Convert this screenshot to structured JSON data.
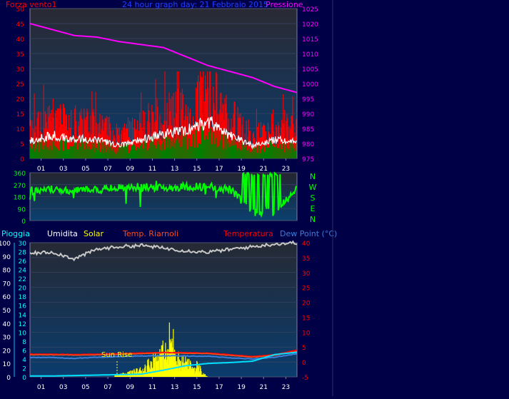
{
  "colors": {
    "page_bg": "#000046",
    "wind": "#ff0000",
    "gust_avg": "#ffffff",
    "wind_green": "#008000",
    "pressure": "#ff00ff",
    "direction": "#00ff00",
    "rain_axis": "#00ffff",
    "humidity_axis": "#ffffff",
    "temperature_axis": "#ff0000",
    "dewpoint": "#3c7ed8",
    "rain": "#00e0ff",
    "solar": "#ffff00",
    "temp_riarnoli": "#ff4a1a",
    "humidity": "#c8c8c8"
  },
  "top_chart": {
    "label_left": "Forza vento1",
    "title": "24 hour graph day: 21 Febbraio 2015",
    "label_right": "Pressione",
    "left_ticks": [
      "0",
      "5",
      "10",
      "15",
      "20",
      "25",
      "30",
      "35",
      "40",
      "45",
      "50"
    ],
    "right_ticks": [
      "975",
      "980",
      "985",
      "990",
      "995",
      "1000",
      "1005",
      "1010",
      "1015",
      "1020",
      "1025"
    ]
  },
  "dir_chart": {
    "left_ticks": [
      "0",
      "90",
      "180",
      "270",
      "360"
    ],
    "compass": [
      "N",
      "W",
      "S",
      "E",
      "N"
    ]
  },
  "bottom_chart": {
    "labels": {
      "rain": "Pioggia",
      "humidity": "Umidita",
      "solar": "Solar",
      "temp_riarnoli": "Temp. Riarnoli",
      "temperature": "Temperatura",
      "dewpoint": "Dew Point (°C)"
    },
    "annotation": "Sun Rise",
    "humidity_ticks": [
      "0",
      "10",
      "20",
      "30",
      "40",
      "50",
      "60",
      "70",
      "80",
      "90",
      "100"
    ],
    "rain_ticks": [
      "0",
      "2",
      "4",
      "6",
      "8",
      "10",
      "12",
      "14",
      "16",
      "18",
      "20",
      "22",
      "24",
      "26",
      "28",
      "30"
    ],
    "temp_ticks": [
      "-5",
      "0",
      "5",
      "10",
      "15",
      "20",
      "25",
      "30",
      "35",
      "40"
    ]
  },
  "x_ticks": [
    "01",
    "03",
    "05",
    "07",
    "09",
    "11",
    "13",
    "15",
    "17",
    "19",
    "21",
    "23"
  ],
  "chart_data": [
    {
      "type": "line",
      "xlabel": "",
      "ylabel": "Forza vento1",
      "x_hours": [
        0,
        2,
        4,
        6,
        8,
        10,
        12,
        14,
        16,
        18,
        20,
        22,
        24
      ],
      "ylim": [
        0,
        50
      ],
      "y2lim": [
        975,
        1025
      ],
      "series": [
        {
          "name": "Forza vento1",
          "values": [
            12,
            16,
            14,
            13,
            9,
            13,
            17,
            19,
            26,
            16,
            9,
            13,
            12
          ]
        },
        {
          "name": "Pressione",
          "values": [
            1020,
            1018,
            1016,
            1015.5,
            1014,
            1013,
            1012,
            1009,
            1006,
            1004,
            1002,
            999,
            997
          ]
        }
      ]
    },
    {
      "type": "line",
      "ylim": [
        0,
        360
      ],
      "x_hours": [
        0,
        2,
        4,
        6,
        8,
        10,
        12,
        14,
        16,
        18,
        20,
        22,
        24
      ],
      "series": [
        {
          "values": [
            225,
            235,
            225,
            235,
            245,
            255,
            245,
            255,
            255,
            235,
            60,
            60,
            250
          ]
        }
      ]
    },
    {
      "type": "line",
      "humidity_lim": [
        0,
        100
      ],
      "rain_lim": [
        0,
        30
      ],
      "temp_lim": [
        -5,
        40
      ],
      "x_hours": [
        0,
        2,
        4,
        6,
        8,
        10,
        12,
        14,
        16,
        18,
        20,
        22,
        24
      ],
      "series": [
        {
          "name": "Umidita",
          "values": [
            92,
            93,
            88,
            95,
            97,
            98,
            96,
            94,
            93,
            95,
            97,
            99,
            100
          ]
        },
        {
          "name": "Temperatura",
          "values": [
            2.6,
            2.6,
            2.5,
            2.6,
            2.8,
            3.0,
            3.2,
            3.1,
            3.0,
            2.4,
            1.8,
            2.4,
            4.0
          ]
        },
        {
          "name": "Temp. Riarnoli",
          "values": [
            2.4,
            2.4,
            2.3,
            2.4,
            2.6,
            2.8,
            3.0,
            2.9,
            2.8,
            2.2,
            1.6,
            2.2,
            3.6
          ]
        },
        {
          "name": "Dew Point (°C)",
          "values": [
            1.5,
            1.5,
            1.2,
            1.6,
            1.8,
            2.0,
            2.1,
            2.0,
            1.9,
            1.4,
            1.0,
            1.6,
            2.8
          ]
        },
        {
          "name": "Pioggia",
          "values": [
            0.2,
            0.2,
            0.3,
            0.4,
            0.5,
            0.6,
            1.5,
            2.5,
            3.0,
            3.2,
            3.5,
            5.0,
            5.5
          ]
        },
        {
          "name": "Solar",
          "values": [
            0,
            0,
            0,
            0,
            1,
            4,
            14,
            8,
            0,
            0,
            0,
            0,
            0
          ]
        }
      ]
    }
  ]
}
